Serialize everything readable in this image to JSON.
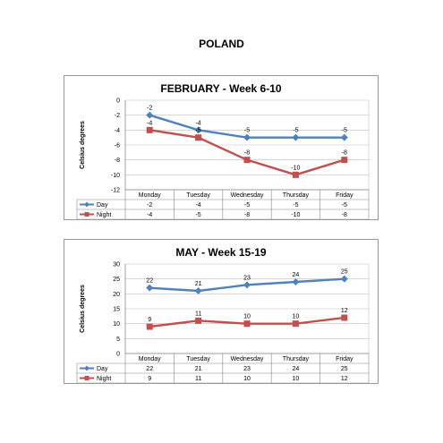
{
  "page": {
    "title": "POLAND"
  },
  "chart_data": [
    {
      "type": "line",
      "title": "FEBRUARY - Week 6-10",
      "ylabel": "Celsius degrees",
      "xlabel": "",
      "categories": [
        "Monday",
        "Tuesday",
        "Wednesday",
        "Thursday",
        "Friday"
      ],
      "ylim": [
        -12,
        0
      ],
      "yticks": [
        0,
        -2,
        -4,
        -6,
        -8,
        -10,
        -12
      ],
      "grid": true,
      "legend": "data-table",
      "series": [
        {
          "name": "Day",
          "values": [
            -2,
            -4,
            -5,
            -5,
            -5
          ],
          "color": "#4F81BD",
          "marker": "diamond"
        },
        {
          "name": "Night",
          "values": [
            -4,
            -5,
            -8,
            -10,
            -8
          ],
          "color": "#C0504D",
          "marker": "square"
        }
      ]
    },
    {
      "type": "line",
      "title": "MAY - Week 15-19",
      "ylabel": "Celsius degrees",
      "xlabel": "",
      "categories": [
        "Monday",
        "Tuesday",
        "Wednesday",
        "Thursday",
        "Friday"
      ],
      "ylim": [
        0,
        30
      ],
      "yticks": [
        30,
        25,
        20,
        15,
        10,
        5,
        0
      ],
      "grid": true,
      "legend": "data-table",
      "series": [
        {
          "name": "Day",
          "values": [
            22,
            21,
            23,
            24,
            25
          ],
          "color": "#4F81BD",
          "marker": "diamond"
        },
        {
          "name": "Night",
          "values": [
            9,
            11,
            10,
            10,
            12
          ],
          "color": "#C0504D",
          "marker": "square"
        }
      ]
    }
  ]
}
